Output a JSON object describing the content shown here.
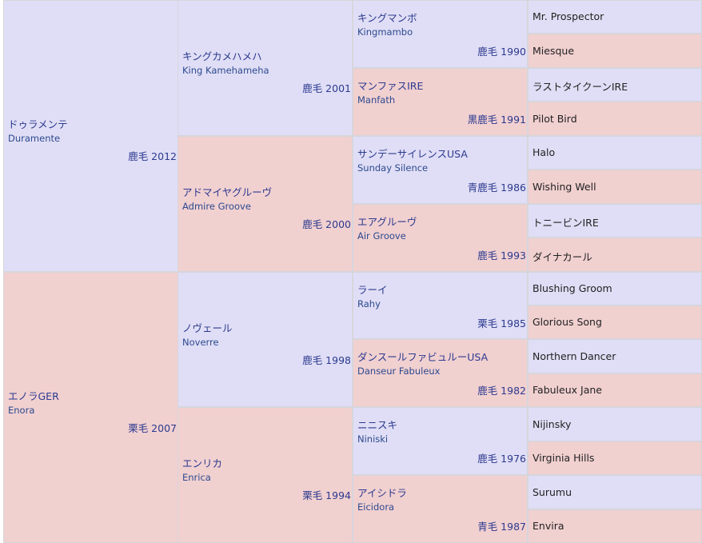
{
  "gen1": [
    {
      "jp": "ドゥラメンテ",
      "en": "Duramente",
      "info": "鹿毛 2012",
      "sex": "m"
    },
    {
      "jp": "エノラGER",
      "en": "Enora",
      "info": "栗毛 2007",
      "sex": "f"
    }
  ],
  "gen2": [
    {
      "jp": "キングカメハメハ",
      "en": "King Kamehameha",
      "info": "鹿毛 2001",
      "sex": "m"
    },
    {
      "jp": "アドマイヤグルーヴ",
      "en": "Admire Groove",
      "info": "鹿毛 2000",
      "sex": "f"
    },
    {
      "jp": "ノヴェール",
      "en": "Noverre",
      "info": "鹿毛 1998",
      "sex": "m"
    },
    {
      "jp": "エンリカ",
      "en": "Enrica",
      "info": "栗毛 1994",
      "sex": "f"
    }
  ],
  "gen3": [
    {
      "jp": "キングマンボ",
      "en": "Kingmambo",
      "info": "鹿毛 1990",
      "sex": "m"
    },
    {
      "jp": "マンファスIRE",
      "en": "Manfath",
      "info": "黒鹿毛 1991",
      "sex": "f"
    },
    {
      "jp": "サンデーサイレンスUSA",
      "en": "Sunday Silence",
      "info": "青鹿毛 1986",
      "sex": "m"
    },
    {
      "jp": "エアグルーヴ",
      "en": "Air Groove",
      "info": "鹿毛 1993",
      "sex": "f"
    },
    {
      "jp": "ラーイ",
      "en": "Rahy",
      "info": "栗毛 1985",
      "sex": "m"
    },
    {
      "jp": "ダンスールファビュルーUSA",
      "en": "Danseur Fabuleux",
      "info": "鹿毛 1982",
      "sex": "f"
    },
    {
      "jp": "ニニスキ",
      "en": "Niniski",
      "info": "鹿毛 1976",
      "sex": "m"
    },
    {
      "jp": "アイシドラ",
      "en": "Eicidora",
      "info": "青毛 1987",
      "sex": "f"
    }
  ],
  "gen4": [
    {
      "name": "Mr. Prospector",
      "sex": "m"
    },
    {
      "name": "Miesque",
      "sex": "f"
    },
    {
      "name": "ラストタイクーンIRE",
      "sex": "m"
    },
    {
      "name": "Pilot Bird",
      "sex": "f"
    },
    {
      "name": "Halo",
      "sex": "m"
    },
    {
      "name": "Wishing Well",
      "sex": "f"
    },
    {
      "name": "トニービンIRE",
      "sex": "m"
    },
    {
      "name": "ダイナカール",
      "sex": "f"
    },
    {
      "name": "Blushing Groom",
      "sex": "m"
    },
    {
      "name": "Glorious Song",
      "sex": "f"
    },
    {
      "name": "Northern Dancer",
      "sex": "m"
    },
    {
      "name": "Fabuleux Jane",
      "sex": "f"
    },
    {
      "name": "Nijinsky",
      "sex": "m"
    },
    {
      "name": "Virginia Hills",
      "sex": "f"
    },
    {
      "name": "Surumu",
      "sex": "m"
    },
    {
      "name": "Envira",
      "sex": "f"
    }
  ]
}
